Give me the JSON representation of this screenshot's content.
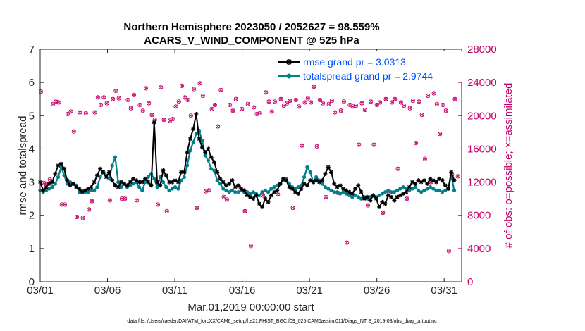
{
  "chart_data": {
    "type": "line",
    "title": "Northern Hemisphere 2023050 / 2052627 = 98.559%",
    "subtitle": "ACARS_V_WIND_COMPONENT @ 525 hPa",
    "xlabel": "Mar.01,2019 00:00:00 start",
    "ylabel": "rmse and totalspread",
    "y2label": "# of obs: o=possible; ×=assimilated",
    "xlim": [
      0,
      31.3
    ],
    "ylim": [
      0,
      7
    ],
    "y2lim": [
      0,
      28000
    ],
    "x_ticks": [
      0,
      5,
      10,
      15,
      20,
      25,
      30
    ],
    "x_tick_labels": [
      "03/01",
      "03/06",
      "03/11",
      "03/16",
      "03/21",
      "03/26",
      "03/31"
    ],
    "y_ticks": [
      0,
      1,
      2,
      3,
      4,
      5,
      6,
      7
    ],
    "y_tick_labels": [
      "0",
      "1",
      "2",
      "3",
      "4",
      "5",
      "6",
      "7"
    ],
    "y2_ticks": [
      0,
      4000,
      8000,
      12000,
      16000,
      20000,
      24000,
      28000
    ],
    "y2_tick_labels": [
      "0",
      "4000",
      "8000",
      "12000",
      "16000",
      "20000",
      "24000",
      "28000"
    ],
    "grid": false,
    "legend_position": "top-right",
    "series": [
      {
        "name": "rmse grand pr = 3.0313",
        "color": "#000000",
        "marker": "asterisk",
        "values": [
          3.0,
          2.75,
          2.85,
          2.95,
          3.0,
          3.25,
          3.5,
          3.55,
          3.4,
          3.05,
          2.9,
          2.95,
          2.85,
          2.8,
          2.7,
          2.75,
          2.8,
          2.85,
          3.0,
          3.2,
          3.4,
          3.3,
          3.15,
          3.3,
          3.05,
          2.9,
          2.85,
          3.0,
          2.95,
          2.9,
          3.0,
          3.1,
          3.05,
          3.0,
          3.0,
          3.1,
          3.0,
          2.9,
          4.8,
          3.0,
          2.9,
          3.35,
          3.2,
          3.0,
          3.0,
          3.05,
          3.0,
          3.3,
          3.3,
          3.9,
          4.3,
          4.6,
          5.05,
          4.3,
          4.05,
          3.9,
          4.0,
          3.75,
          3.6,
          3.3,
          3.1,
          3.0,
          2.9,
          2.95,
          3.05,
          2.85,
          2.9,
          2.8,
          2.75,
          2.6,
          2.55,
          2.5,
          2.6,
          2.35,
          2.25,
          2.5,
          2.4,
          2.6,
          2.7,
          2.75,
          2.95,
          3.1,
          3.05,
          2.85,
          2.8,
          2.7,
          2.65,
          2.8,
          2.95,
          2.9,
          3.05,
          3.0,
          3.05,
          3.0,
          3.05,
          3.25,
          3.45,
          3.3,
          2.95,
          2.85,
          2.9,
          2.8,
          2.75,
          2.7,
          2.65,
          2.8,
          2.9,
          2.7,
          2.5,
          2.55,
          2.45,
          2.6,
          2.5,
          2.25,
          2.4,
          2.35,
          2.6,
          2.55,
          2.45,
          2.55,
          2.6,
          2.65,
          2.7,
          2.85,
          3.0,
          2.95,
          3.05,
          3.0,
          3.05,
          2.95,
          3.1,
          3.05,
          3.0,
          3.1,
          3.05,
          2.9,
          2.8,
          3.3,
          3.05
        ]
      },
      {
        "name": "totalspread grand pr = 2.9744",
        "color": "#00808a",
        "marker": "dot",
        "values": [
          2.75,
          2.7,
          2.75,
          2.8,
          2.85,
          2.95,
          3.15,
          3.45,
          3.2,
          2.95,
          3.0,
          2.95,
          2.9,
          2.7,
          2.75,
          2.7,
          2.7,
          2.75,
          2.75,
          2.85,
          3.15,
          3.3,
          3.2,
          3.1,
          3.5,
          3.75,
          3.0,
          2.85,
          2.95,
          2.85,
          2.9,
          2.95,
          3.0,
          2.85,
          2.75,
          3.0,
          3.15,
          3.25,
          3.1,
          2.85,
          3.15,
          3.0,
          2.85,
          2.75,
          2.8,
          2.85,
          2.8,
          3.05,
          3.15,
          3.5,
          3.95,
          4.2,
          4.45,
          4.55,
          4.25,
          3.8,
          3.65,
          3.4,
          3.35,
          3.05,
          2.95,
          2.8,
          2.75,
          2.7,
          2.75,
          2.7,
          2.7,
          2.75,
          2.7,
          2.7,
          2.65,
          2.7,
          2.65,
          2.6,
          2.7,
          2.75,
          2.7,
          2.8,
          2.85,
          2.9,
          2.95,
          3.05,
          3.1,
          2.95,
          2.85,
          2.8,
          2.85,
          2.9,
          3.15,
          3.45,
          3.3,
          3.0,
          3.15,
          3.05,
          2.95,
          2.85,
          2.8,
          2.75,
          2.7,
          2.7,
          2.65,
          2.7,
          2.65,
          2.6,
          2.55,
          2.6,
          2.55,
          2.5,
          2.55,
          2.5,
          2.55,
          2.6,
          2.55,
          2.6,
          2.65,
          2.7,
          2.75,
          2.7,
          2.7,
          2.75,
          2.8,
          2.85,
          2.8,
          2.75,
          2.8,
          2.85,
          2.75,
          2.7,
          2.75,
          2.8,
          2.85,
          2.8,
          2.75,
          2.75,
          2.7,
          2.75,
          2.8,
          3.2,
          2.75
        ]
      }
    ],
    "obs_possible": [
      22900,
      11900,
      11800,
      12300,
      21400,
      21700,
      21600,
      9300,
      9300,
      20200,
      20500,
      18100,
      7800,
      20400,
      7700,
      20300,
      8700,
      9700,
      20400,
      22200,
      21300,
      22200,
      21500,
      9800,
      22000,
      23000,
      22100,
      10000,
      10000,
      21900,
      20900,
      22500,
      9800,
      21300,
      20600,
      23300,
      21500,
      20100,
      19500,
      9300,
      23400,
      19500,
      8500,
      19400,
      19600,
      21100,
      21700,
      23600,
      22200,
      21900,
      20000,
      23200,
      8900,
      23900,
      22400,
      10900,
      11000,
      20800,
      21300,
      18700,
      23100,
      10200,
      9900,
      21300,
      20600,
      22000,
      11500,
      20800,
      8500,
      21400,
      4300,
      21000,
      20200,
      20300,
      10400,
      22800,
      21700,
      20500,
      21700,
      10500,
      22000,
      21200,
      21500,
      21800,
      8900,
      21900,
      21100,
      16400,
      21600,
      22100,
      21600,
      23500,
      16300,
      21900,
      21500,
      10200,
      21400,
      21800,
      20400,
      10700,
      20600,
      21700,
      4700,
      21300,
      21100,
      21200,
      16500,
      21500,
      20700,
      9200,
      21700,
      16500,
      21300,
      21600,
      8300,
      22000,
      10800,
      21600,
      22000,
      13600,
      21600,
      21200,
      10000,
      20900,
      21800,
      16700,
      21700,
      20100,
      14800,
      22400,
      12000,
      22700,
      21400,
      17800,
      21300,
      20600,
      3700,
      12900,
      22000,
      12700
    ]
  }
}
